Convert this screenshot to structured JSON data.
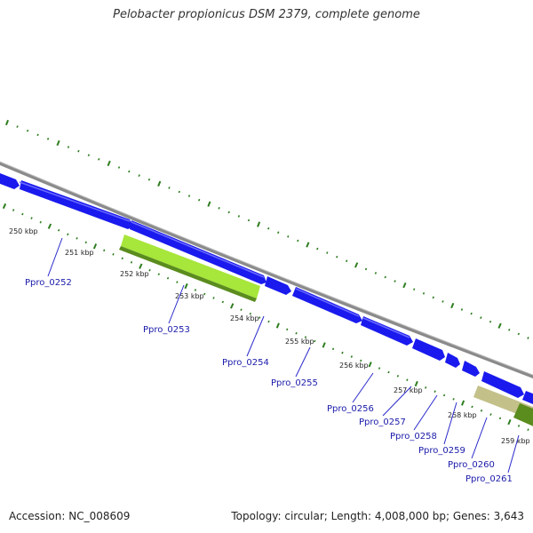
{
  "title": "Pelobacter propionicus DSM 2379, complete genome",
  "footer": {
    "accession": "Accession: NC_008609",
    "summary": "Topology: circular; Length: 4,008,000 bp; Genes: 3,643"
  },
  "colors": {
    "backbone": "#8a8a8a",
    "forward_gene": "#1a1aee",
    "reverse_gene_light": "#a7e63a",
    "reverse_gene_olive": "#c4c08a",
    "reverse_gene_dark": "#5b8c1e",
    "tick": "#2e7d1f",
    "label": "#1a1aaa"
  },
  "ruler_labels": [
    {
      "text": "250 kbp"
    },
    {
      "text": "251 kbp"
    },
    {
      "text": "252 kbp"
    },
    {
      "text": "253 kbp"
    },
    {
      "text": "254 kbp"
    },
    {
      "text": "255 kbp"
    },
    {
      "text": "256 kbp"
    },
    {
      "text": "257 kbp"
    },
    {
      "text": "258 kbp"
    },
    {
      "text": "259 kbp"
    }
  ],
  "gene_labels": [
    {
      "text": "Ppro_0252"
    },
    {
      "text": "Ppro_0253"
    },
    {
      "text": "Ppro_0254"
    },
    {
      "text": "Ppro_0255"
    },
    {
      "text": "Ppro_0256"
    },
    {
      "text": "Ppro_0257"
    },
    {
      "text": "Ppro_0258"
    },
    {
      "text": "Ppro_0259"
    },
    {
      "text": "Ppro_0260"
    },
    {
      "text": "Ppro_0261"
    }
  ]
}
